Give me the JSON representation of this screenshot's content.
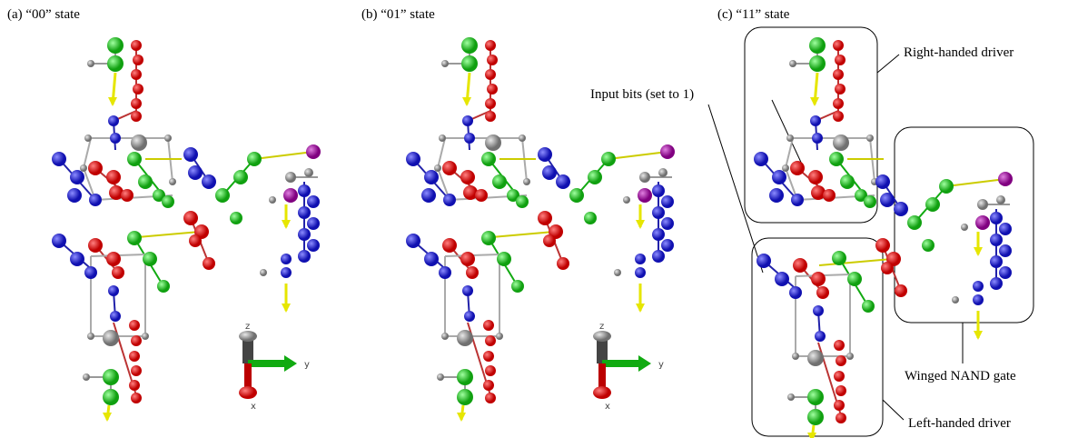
{
  "panels": [
    {
      "label": "(a) “00” state",
      "axes": {
        "z": "z",
        "y": "y",
        "x": "x"
      }
    },
    {
      "label": "(b) “01” state",
      "axes": {
        "z": "z",
        "y": "y",
        "x": "x"
      }
    },
    {
      "label": "(c) “11” state"
    }
  ],
  "annotations": {
    "right_handed_driver": "Right-handed driver",
    "input_bits": "Input bits (set to 1)",
    "winged_nand_gate": "Winged NAND gate",
    "left_handed_driver": "Left-handed driver"
  }
}
